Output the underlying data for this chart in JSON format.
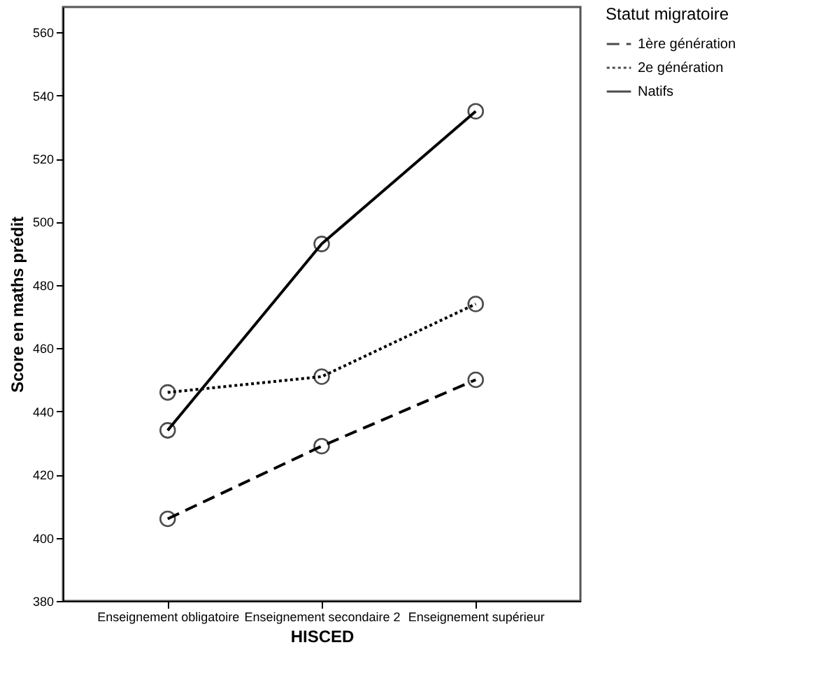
{
  "chart_data": {
    "type": "line",
    "xlabel": "HISCED",
    "ylabel": "Score en maths prédit",
    "legend_title": "Statut migratoire",
    "categories": [
      "Enseignement obligatoire",
      "Enseignement secondaire 2",
      "Enseignement supérieur"
    ],
    "series": [
      {
        "name": "1ère génération",
        "color": "#000000",
        "line_style": "dashed",
        "values": [
          406,
          429,
          450
        ]
      },
      {
        "name": "2e génération",
        "color": "#000000",
        "line_style": "dotted",
        "values": [
          446,
          451,
          474
        ]
      },
      {
        "name": "Natifs",
        "color": "#000000",
        "line_style": "solid",
        "values": [
          434,
          493,
          535
        ]
      }
    ],
    "ylim": [
      380,
      568
    ],
    "yticks": [
      380,
      400,
      420,
      440,
      460,
      480,
      500,
      520,
      540,
      560
    ],
    "marker": "circle",
    "grid": false,
    "legend": "top right"
  }
}
